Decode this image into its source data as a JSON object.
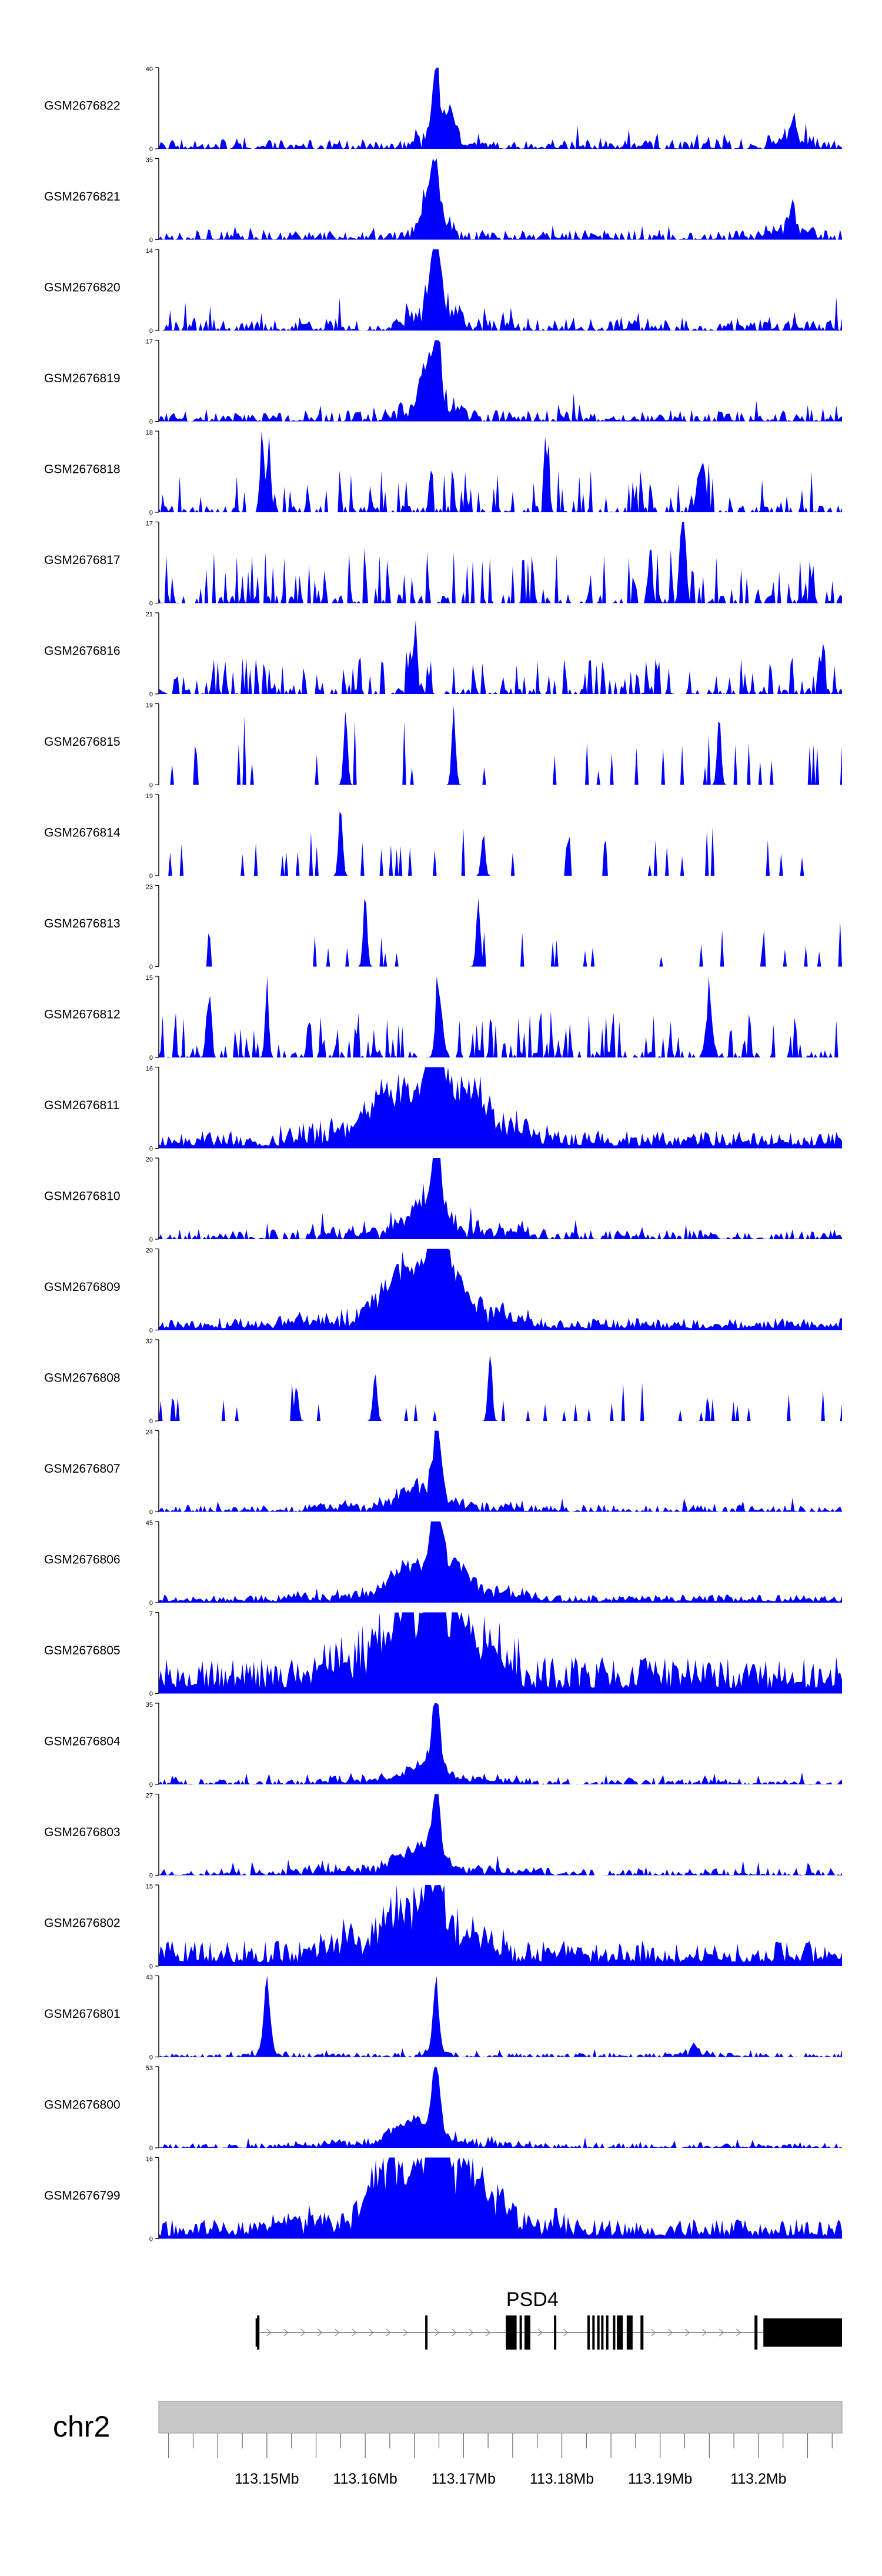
{
  "chart_data": {
    "type": "area",
    "title": "",
    "chromosome": "chr2",
    "xlim": [
      113.139,
      113.2085
    ],
    "x_ticks": [
      113.15,
      113.16,
      113.17,
      113.18,
      113.19,
      113.2
    ],
    "x_tick_labels": [
      "113.15Mb",
      "113.16Mb",
      "113.17Mb",
      "113.18Mb",
      "113.19Mb",
      "113.2Mb"
    ],
    "colors": {
      "signal": "#0000ff",
      "axis": "#000000",
      "ideogram": "#c8c8c8",
      "label": "#000000"
    },
    "tracks": [
      {
        "name": "GSM2676822",
        "ymax": 40,
        "ymin": 0,
        "profile": "sharp",
        "seed": 11,
        "base": 0.13,
        "peaks": [
          [
            113.1672,
            1.0,
            0.00035
          ],
          [
            113.1686,
            0.38,
            0.0005
          ],
          [
            113.2035,
            0.3,
            0.0004
          ]
        ]
      },
      {
        "name": "GSM2676821",
        "ymax": 35,
        "ymin": 0,
        "profile": "sharp",
        "seed": 12,
        "base": 0.14,
        "peaks": [
          [
            113.1672,
            1.0,
            0.00035
          ],
          [
            113.1663,
            0.42,
            0.0004
          ],
          [
            113.2033,
            0.35,
            0.0004
          ]
        ]
      },
      {
        "name": "GSM2676820",
        "ymax": 14,
        "ymin": 0,
        "profile": "sharp",
        "seed": 13,
        "base": 0.18,
        "peaks": [
          [
            113.1673,
            1.0,
            0.0004
          ],
          [
            113.1665,
            0.35,
            0.0005
          ]
        ]
      },
      {
        "name": "GSM2676819",
        "ymax": 17,
        "ymin": 0,
        "profile": "sharp",
        "seed": 14,
        "base": 0.16,
        "peaks": [
          [
            113.1673,
            1.0,
            0.0004
          ],
          [
            113.166,
            0.45,
            0.0006
          ]
        ]
      },
      {
        "name": "GSM2676818",
        "ymax": 18,
        "ymin": 0,
        "profile": "spiky",
        "seed": 15,
        "base": 0.35,
        "peaks": [
          [
            113.1495,
            1.0,
            0.0002
          ],
          [
            113.1502,
            0.95,
            0.0002
          ],
          [
            113.1785,
            0.85,
            0.0002
          ],
          [
            113.1942,
            0.7,
            0.0004
          ]
        ]
      },
      {
        "name": "GSM2676817",
        "ymax": 17,
        "ymin": 0,
        "profile": "spiky",
        "seed": 16,
        "base": 0.45,
        "peaks": [
          [
            113.1922,
            1.0,
            0.0002
          ],
          [
            113.1925,
            0.75,
            0.0002
          ],
          [
            113.189,
            0.7,
            0.0002
          ]
        ]
      },
      {
        "name": "GSM2676816",
        "ymax": 21,
        "ymin": 0,
        "profile": "spiky",
        "seed": 17,
        "base": 0.3,
        "peaks": [
          [
            113.1651,
            0.95,
            0.0002
          ],
          [
            113.1645,
            0.5,
            0.0002
          ],
          [
            113.2065,
            0.55,
            0.0002
          ]
        ]
      },
      {
        "name": "GSM2676815",
        "ymax": 19,
        "ymin": 0,
        "profile": "sparse",
        "seed": 18,
        "base": 0.55,
        "peaks": [
          [
            113.169,
            1.0,
            0.0002
          ],
          [
            113.158,
            0.95,
            0.0002
          ],
          [
            113.196,
            0.9,
            0.0002
          ]
        ]
      },
      {
        "name": "GSM2676814",
        "ymax": 19,
        "ymin": 0,
        "profile": "sparse",
        "seed": 19,
        "base": 0.45,
        "peaks": [
          [
            113.1575,
            1.0,
            0.0002
          ],
          [
            113.172,
            0.6,
            0.0002
          ]
        ]
      },
      {
        "name": "GSM2676813",
        "ymax": 23,
        "ymin": 0,
        "profile": "sparse",
        "seed": 20,
        "base": 0.4,
        "peaks": [
          [
            113.16,
            0.95,
            0.0002
          ],
          [
            113.1715,
            1.0,
            0.0002
          ]
        ]
      },
      {
        "name": "GSM2676812",
        "ymax": 15,
        "ymin": 0,
        "profile": "spiky",
        "seed": 21,
        "base": 0.38,
        "peaks": [
          [
            113.1675,
            0.98,
            0.0003
          ],
          [
            113.15,
            0.8,
            0.0002
          ],
          [
            113.195,
            0.8,
            0.0003
          ],
          [
            113.144,
            0.65,
            0.0002
          ]
        ]
      },
      {
        "name": "GSM2676811",
        "ymax": 16,
        "ymin": 0,
        "profile": "dense",
        "seed": 22,
        "base": 0.22,
        "peaks": [
          [
            113.1672,
            1.0,
            0.0012
          ],
          [
            113.162,
            0.4,
            0.0015
          ],
          [
            113.171,
            0.35,
            0.0012
          ]
        ]
      },
      {
        "name": "GSM2676810",
        "ymax": 20,
        "ymin": 0,
        "profile": "sharp",
        "seed": 23,
        "base": 0.14,
        "peaks": [
          [
            113.1673,
            1.0,
            0.0004
          ],
          [
            113.166,
            0.35,
            0.0015
          ]
        ]
      },
      {
        "name": "GSM2676809",
        "ymax": 20,
        "ymin": 0,
        "profile": "dense",
        "seed": 24,
        "base": 0.15,
        "peaks": [
          [
            113.1672,
            1.0,
            0.0008
          ],
          [
            113.164,
            0.55,
            0.0018
          ],
          [
            113.1685,
            0.5,
            0.0012
          ]
        ]
      },
      {
        "name": "GSM2676808",
        "ymax": 32,
        "ymin": 0,
        "profile": "sparse",
        "seed": 25,
        "base": 0.3,
        "peaks": [
          [
            113.1727,
            1.0,
            0.0002
          ],
          [
            113.161,
            0.7,
            0.0002
          ],
          [
            113.153,
            0.5,
            0.0002
          ]
        ]
      },
      {
        "name": "GSM2676807",
        "ymax": 24,
        "ymin": 0,
        "profile": "sharp",
        "seed": 26,
        "base": 0.1,
        "peaks": [
          [
            113.1673,
            1.0,
            0.0004
          ],
          [
            113.165,
            0.25,
            0.0015
          ]
        ]
      },
      {
        "name": "GSM2676806",
        "ymax": 45,
        "ymin": 0,
        "profile": "dense",
        "seed": 27,
        "base": 0.1,
        "peaks": [
          [
            113.1672,
            1.0,
            0.0005
          ],
          [
            113.1645,
            0.35,
            0.0018
          ],
          [
            113.169,
            0.35,
            0.0012
          ]
        ]
      },
      {
        "name": "GSM2676805",
        "ymax": 7,
        "ymin": 0,
        "profile": "dense",
        "seed": 28,
        "base": 0.45,
        "peaks": [
          [
            113.1672,
            0.75,
            0.0012
          ],
          [
            113.164,
            0.3,
            0.0015
          ]
        ]
      },
      {
        "name": "GSM2676804",
        "ymax": 35,
        "ymin": 0,
        "profile": "sharp",
        "seed": 29,
        "base": 0.08,
        "peaks": [
          [
            113.1672,
            1.0,
            0.0004
          ],
          [
            113.166,
            0.2,
            0.0015
          ]
        ]
      },
      {
        "name": "GSM2676803",
        "ymax": 27,
        "ymin": 0,
        "profile": "sharp",
        "seed": 30,
        "base": 0.1,
        "peaks": [
          [
            113.1672,
            1.0,
            0.0004
          ],
          [
            113.165,
            0.25,
            0.0018
          ]
        ]
      },
      {
        "name": "GSM2676802",
        "ymax": 15,
        "ymin": 0,
        "profile": "dense",
        "seed": 31,
        "base": 0.32,
        "peaks": [
          [
            113.1672,
            0.85,
            0.0008
          ],
          [
            113.164,
            0.35,
            0.0015
          ]
        ]
      },
      {
        "name": "GSM2676801",
        "ymax": 43,
        "ymin": 0,
        "profile": "sharp",
        "seed": 32,
        "base": 0.06,
        "peaks": [
          [
            113.15,
            1.0,
            0.0003
          ],
          [
            113.1672,
            1.0,
            0.0003
          ],
          [
            113.1935,
            0.15,
            0.0003
          ]
        ]
      },
      {
        "name": "GSM2676800",
        "ymax": 53,
        "ymin": 0,
        "profile": "sharp",
        "seed": 33,
        "base": 0.07,
        "peaks": [
          [
            113.1672,
            1.0,
            0.0004
          ],
          [
            113.1645,
            0.3,
            0.0018
          ]
        ]
      },
      {
        "name": "GSM2676799",
        "ymax": 16,
        "ymin": 0,
        "profile": "dense",
        "seed": 34,
        "base": 0.25,
        "peaks": [
          [
            113.1672,
            0.95,
            0.001
          ],
          [
            113.163,
            0.6,
            0.0018
          ],
          [
            113.17,
            0.4,
            0.0015
          ]
        ]
      }
    ],
    "gene": {
      "name": "PSD4",
      "start": 113.149,
      "end": 113.2085,
      "strand": "+",
      "exons": [
        [
          113.149,
          113.1492
        ],
        [
          113.1661,
          113.1663
        ],
        [
          113.1743,
          113.1754
        ],
        [
          113.1757,
          113.1759
        ],
        [
          113.1762,
          113.1768
        ],
        [
          113.1792,
          113.1794
        ],
        [
          113.1826,
          113.1828
        ],
        [
          113.1831,
          113.1833
        ],
        [
          113.1836,
          113.1838
        ],
        [
          113.184,
          113.1842
        ],
        [
          113.1845,
          113.1847
        ],
        [
          113.1852,
          113.1854
        ],
        [
          113.1856,
          113.1862
        ],
        [
          113.1866,
          113.1872
        ],
        [
          113.188,
          113.1883
        ],
        [
          113.1996,
          113.1999
        ],
        [
          113.2005,
          113.2085
        ]
      ]
    }
  }
}
